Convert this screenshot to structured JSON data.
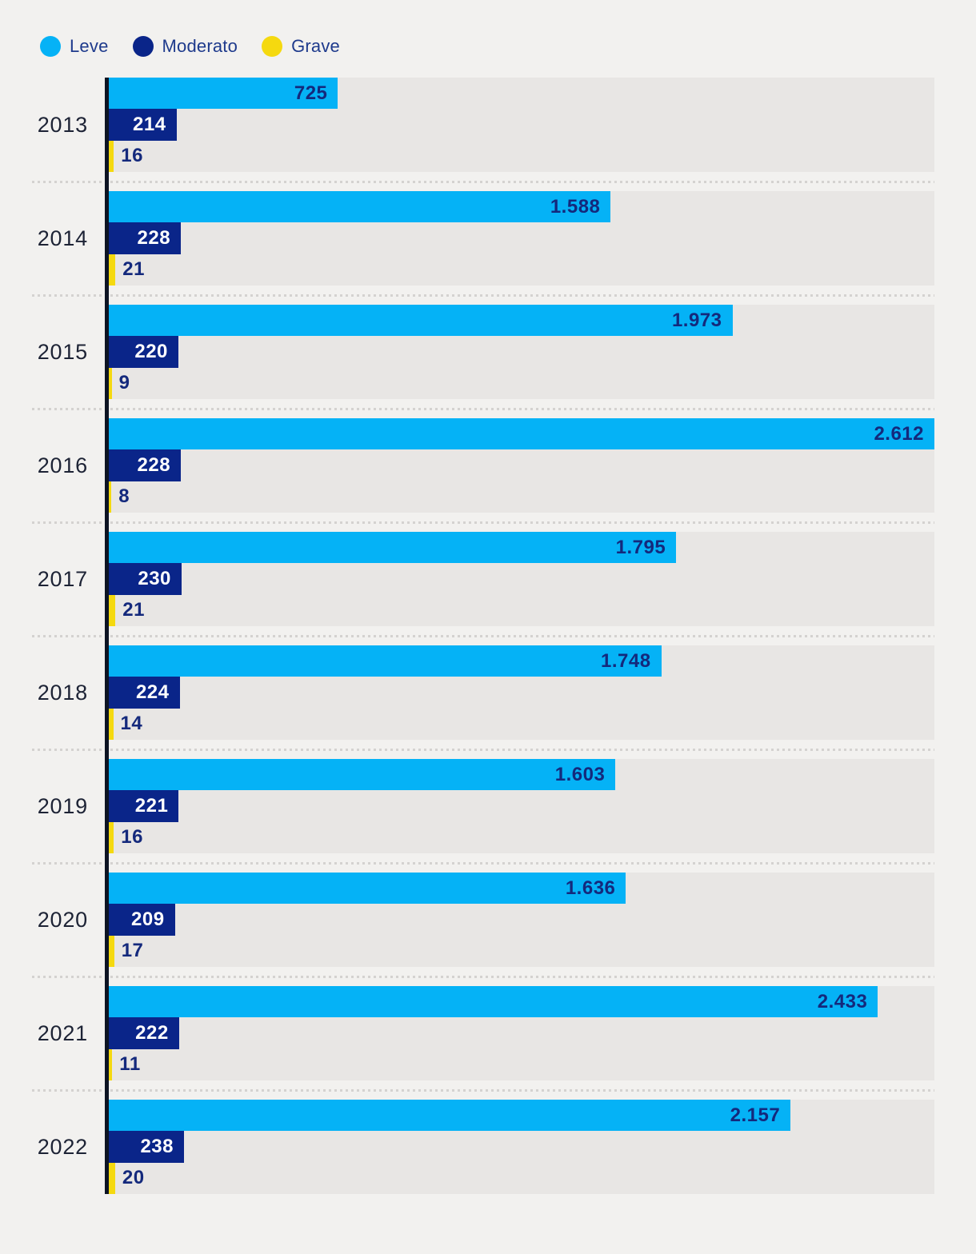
{
  "legend": {
    "items": [
      {
        "label": "Leve",
        "color": "#05B2F6"
      },
      {
        "label": "Moderato",
        "color": "#0A2589"
      },
      {
        "label": "Grave",
        "color": "#F5D90F"
      }
    ]
  },
  "colors": {
    "background": "#F2F1EF",
    "track": "#E8E6E4",
    "axis": "#0D1423",
    "value_text_navy": "#14297C",
    "value_text_white": "#FFFFFF",
    "year_text": "#1D2335",
    "separator_dots": "#D4D2D0"
  },
  "chart_data": {
    "type": "bar",
    "orientation": "horizontal",
    "title": "",
    "xlabel": "",
    "ylabel": "",
    "xlim": [
      0,
      2612
    ],
    "grid": false,
    "legend_position": "top-left",
    "categories": [
      "2013",
      "2014",
      "2015",
      "2016",
      "2017",
      "2018",
      "2019",
      "2020",
      "2021",
      "2022"
    ],
    "series": [
      {
        "name": "Leve",
        "color": "#05B2F6",
        "label_style": "inside-navy",
        "values": [
          725,
          1588,
          1973,
          2612,
          1795,
          1748,
          1603,
          1636,
          2433,
          2157
        ],
        "labels": [
          "725",
          "1.588",
          "1.973",
          "2.612",
          "1.795",
          "1.748",
          "1.603",
          "1.636",
          "2.433",
          "2.157"
        ]
      },
      {
        "name": "Moderato",
        "color": "#0A2589",
        "label_style": "inside-white",
        "values": [
          214,
          228,
          220,
          228,
          230,
          224,
          221,
          209,
          222,
          238
        ],
        "labels": [
          "214",
          "228",
          "220",
          "228",
          "230",
          "224",
          "221",
          "209",
          "222",
          "238"
        ]
      },
      {
        "name": "Grave",
        "color": "#F5D90F",
        "label_style": "outside-navy",
        "values": [
          16,
          21,
          9,
          8,
          21,
          14,
          16,
          17,
          11,
          20
        ],
        "labels": [
          "16",
          "21",
          "9",
          "8",
          "21",
          "14",
          "16",
          "17",
          "11",
          "20"
        ]
      }
    ]
  }
}
